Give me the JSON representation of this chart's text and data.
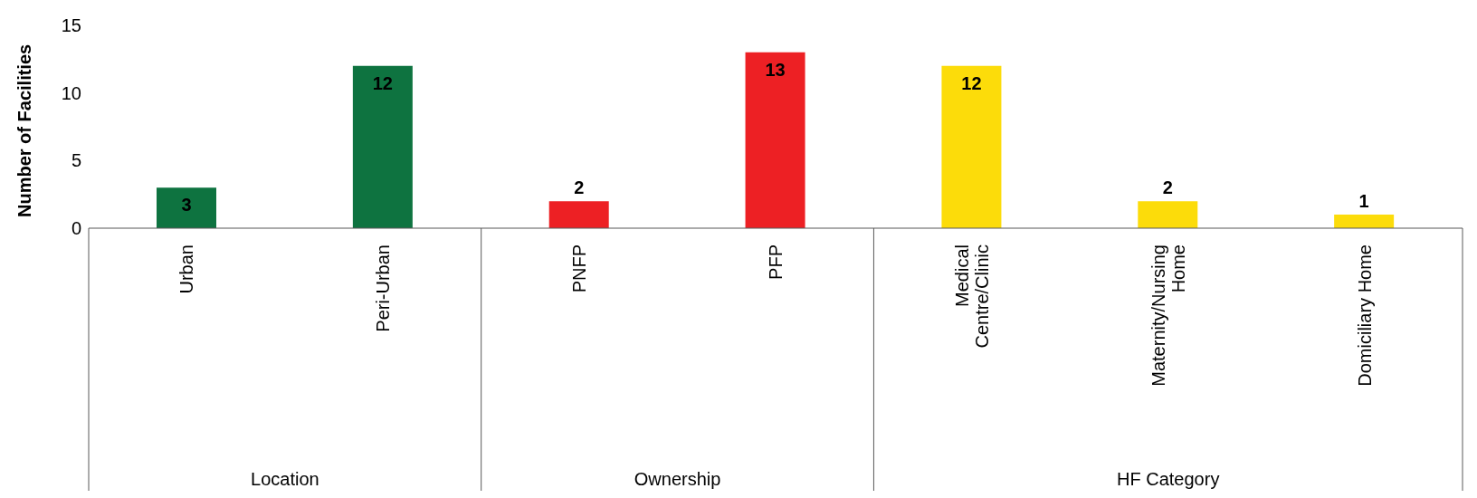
{
  "chart_data": {
    "type": "bar",
    "ylabel": "Number of Facilities",
    "categories": [
      "Urban",
      "Peri-Urban",
      "PNFP",
      "PFP",
      "Medical Centre/Clinic",
      "Maternity/Nursing Home",
      "Domiciliary Home"
    ],
    "values": [
      3,
      12,
      2,
      13,
      12,
      2,
      1
    ],
    "colors": [
      "#0e7340",
      "#0e7340",
      "#ed2024",
      "#ed2024",
      "#fcdc0a",
      "#fcdc0a",
      "#fcdc0a"
    ],
    "ylim": [
      0,
      15
    ],
    "yticks": [
      0,
      5,
      10,
      15
    ],
    "grid": false,
    "legend": false,
    "data_labels": true,
    "annotations": [
      "Location",
      "Ownership",
      "HF Category"
    ]
  }
}
